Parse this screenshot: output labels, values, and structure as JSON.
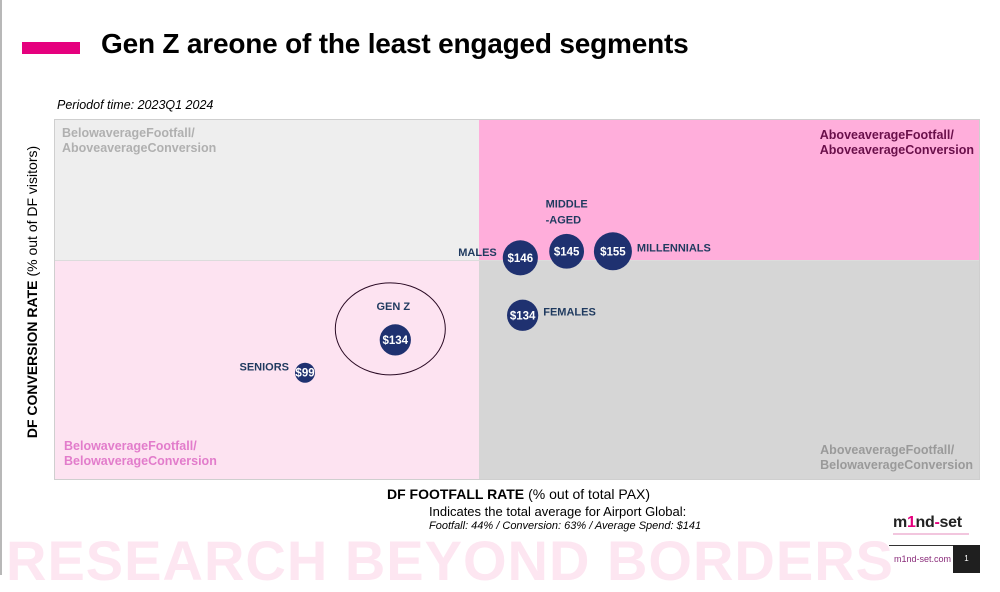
{
  "slide": {
    "title": "Gen Z areone of the least engaged segments",
    "period": "Periodof time: 2023Q1 2024",
    "watermark": "RESEARCH BEYOND BORDERS",
    "accent_color": "#e5007e"
  },
  "chart_data": {
    "type": "scatter",
    "title": "Gen Z areone of the least engaged segments",
    "subtitle": "Periodof time: 2023Q1 2024",
    "xlabel_bold": "DF FOOTFALL RATE",
    "xlabel_rest": "(% out of total PAX)",
    "ylabel_bold": "DF CONVERSION RATE",
    "ylabel_rest": "(% out of DF visitors)",
    "xlim": [
      24,
      64
    ],
    "ylim": [
      50,
      72
    ],
    "average": {
      "x": 44,
      "y": 63,
      "spend": "$141"
    },
    "grid": false,
    "quadrants": [
      {
        "id": "tl",
        "label_line1": "BelowaverageFootfall/",
        "label_line2": "AboveaverageConversion"
      },
      {
        "id": "tr",
        "label_line1": "AboveaverageFootfall/",
        "label_line2": "AboveaverageConversion"
      },
      {
        "id": "bl",
        "label_line1": "BelowaverageFootfall/",
        "label_line2": "BelowaverageConversion"
      },
      {
        "id": "br",
        "label_line1": "AboveaverageFootfall/",
        "label_line2": "BelowaverageConversion"
      }
    ],
    "points": [
      {
        "name": "MALES",
        "x": 44.1,
        "y": 63.6,
        "spend": "$146",
        "label_pos": "left"
      },
      {
        "name": "MIDDLE -AGED",
        "name_line1": "MIDDLE",
        "name_line2": "-AGED",
        "x": 46.1,
        "y": 64.0,
        "spend": "$145",
        "label_pos": "top"
      },
      {
        "name": "MILLENNIALS",
        "x": 48.1,
        "y": 64.0,
        "spend": "$155",
        "label_pos": "right"
      },
      {
        "name": "FEMALES",
        "x": 44.2,
        "y": 60.1,
        "spend": "$134",
        "label_pos": "right"
      },
      {
        "name": "GEN Z",
        "x": 38.7,
        "y": 58.6,
        "spend": "$134",
        "label_pos": "top",
        "highlight": true
      },
      {
        "name": "SENIORS",
        "x": 34.8,
        "y": 56.6,
        "spend": "$99",
        "label_pos": "left"
      }
    ]
  },
  "footer": {
    "note_line1": "Indicates the total average for Airport Global:",
    "note_line2": "Footfall: 44% / Conversion: 63% / Average Spend: $141",
    "logo_part1": "m",
    "logo_part2": "1",
    "logo_part3": "nd",
    "logo_part4": "-",
    "logo_part5": "set",
    "website": "m1nd-set.com",
    "page_number": "1"
  }
}
